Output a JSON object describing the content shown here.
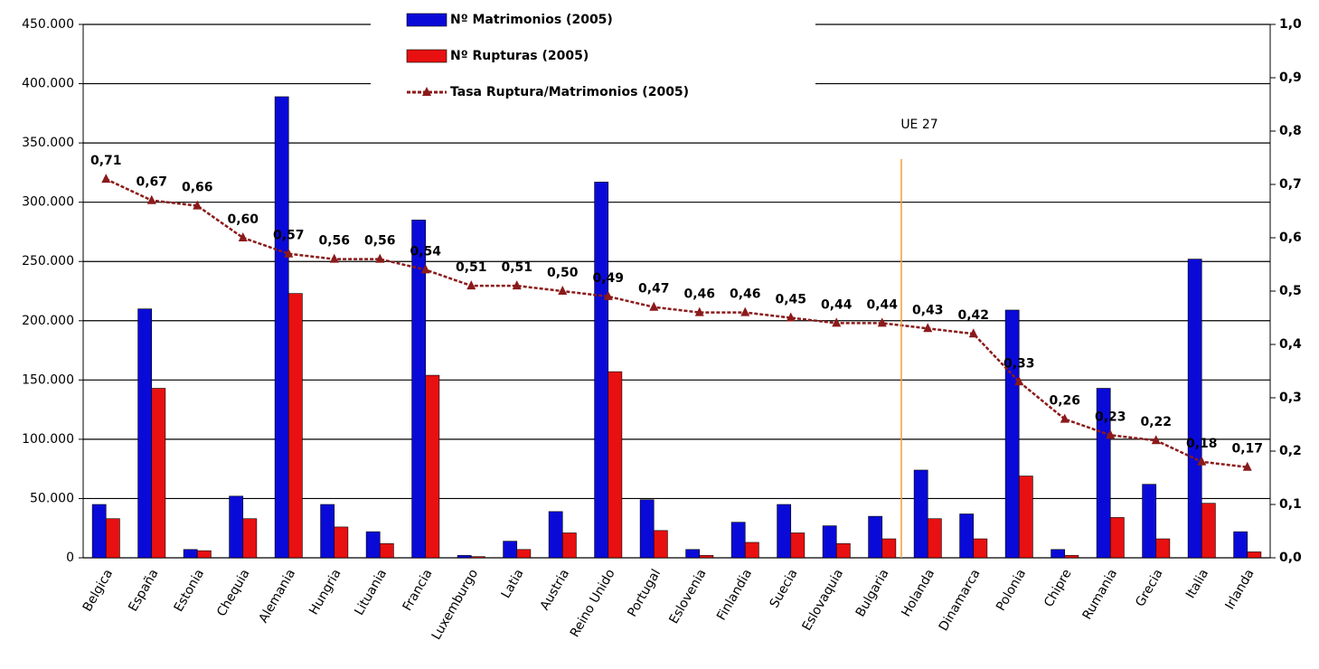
{
  "chart_data": {
    "type": "bar_line",
    "categories": [
      "Belgica",
      "España",
      "Estonia",
      "Chequia",
      "Alemania",
      "Hungria",
      "Lituania",
      "Francia",
      "Luxemburgo",
      "Latia",
      "Austria",
      "Reino Unido",
      "Portugal",
      "Eslovenia",
      "Finlandia",
      "Suecia",
      "Eslovaquia",
      "Bulgaria",
      "Holanda",
      "Dinamarca",
      "Polonia",
      "Chipre",
      "Rumania",
      "Grecia",
      "Italia",
      "Irlanda"
    ],
    "series": [
      {
        "name": "Nº Matrimonios (2005)",
        "color": "#0a0ad8",
        "type": "bar",
        "values": [
          45000,
          210000,
          7000,
          52000,
          389000,
          45000,
          22000,
          285000,
          2000,
          14000,
          39000,
          317000,
          49000,
          7000,
          30000,
          45000,
          27000,
          35000,
          74000,
          37000,
          209000,
          7000,
          143000,
          62000,
          252000,
          22000
        ]
      },
      {
        "name": "Nº Rupturas (2005)",
        "color": "#e81010",
        "type": "bar",
        "values": [
          33000,
          143000,
          6000,
          33000,
          223000,
          26000,
          12000,
          154000,
          1000,
          7000,
          21000,
          157000,
          23000,
          2000,
          13000,
          21000,
          12000,
          16000,
          33000,
          16000,
          69000,
          2000,
          34000,
          16000,
          46000,
          5000
        ]
      },
      {
        "name": "Tasa Ruptura/Matrimonios (2005)",
        "color": "#8b1a1a",
        "type": "line",
        "axis": "y2",
        "values": [
          0.71,
          0.67,
          0.66,
          0.6,
          0.57,
          0.56,
          0.56,
          0.54,
          0.51,
          0.51,
          0.5,
          0.49,
          0.47,
          0.46,
          0.46,
          0.45,
          0.44,
          0.44,
          0.43,
          0.42,
          0.33,
          0.26,
          0.23,
          0.22,
          0.18,
          0.17
        ],
        "value_labels": [
          "0,71",
          "0,67",
          "0,66",
          "0,60",
          "0,57",
          "0,56",
          "0,56",
          "0,54",
          "0,51",
          "0,51",
          "0,50",
          "0,49",
          "0,47",
          "0,46",
          "0,46",
          "0,45",
          "0,44",
          "0,44",
          "0,43",
          "0,42",
          "0,33",
          "0,26",
          "0,23",
          "0,22",
          "0,18",
          "0,17"
        ],
        "value_label_colors": [
          "#e81010",
          "#e81010",
          "#e81010",
          "#e81010",
          "#e81010",
          "#e81010",
          "#e81010",
          "#e81010",
          "#e81010",
          "#e81010",
          "#e81010",
          "#e81010",
          "#e81010",
          "#000000",
          "#e81010",
          "#e81010",
          "#e81010",
          "#e81010",
          "#e81010",
          "#e81010",
          "#e81010",
          "#e81010",
          "#e81010",
          "#2233aa",
          "#e81010",
          "#2233aa"
        ]
      }
    ],
    "annotation": {
      "text": "UE 27",
      "color": "#f0a030"
    },
    "ylim": [
      0,
      450000
    ],
    "yticks": [
      0,
      {
        "value": 50000,
        "label": "50.000"
      },
      {
        "value": 100000,
        "label": "100.000"
      },
      {
        "value": 150000,
        "label": "150.000"
      },
      {
        "value": 200000,
        "label": "200.000"
      },
      {
        "value": 250000,
        "label": "250.000"
      },
      {
        "value": 300000,
        "label": "300.000"
      },
      {
        "value": 350000,
        "label": "350.000"
      },
      {
        "value": 400000,
        "label": "400.000"
      },
      {
        "value": 450000,
        "label": "450.000"
      }
    ],
    "y2lim": [
      0,
      1
    ],
    "y2ticks": [
      {
        "value": 0,
        "label": "0,0"
      },
      {
        "value": 0.1,
        "label": "0,1"
      },
      {
        "value": 0.2,
        "label": "0,2"
      },
      {
        "value": 0.3,
        "label": "0,3"
      },
      {
        "value": 0.4,
        "label": "0,4"
      },
      {
        "value": 0.5,
        "label": "0,5"
      },
      {
        "value": 0.6,
        "label": "0,6"
      },
      {
        "value": 0.7,
        "label": "0,7"
      },
      {
        "value": 0.8,
        "label": "0,8"
      },
      {
        "value": 0.9,
        "label": "0,9"
      },
      {
        "value": 1,
        "label": "1,0"
      }
    ],
    "grid": true
  }
}
